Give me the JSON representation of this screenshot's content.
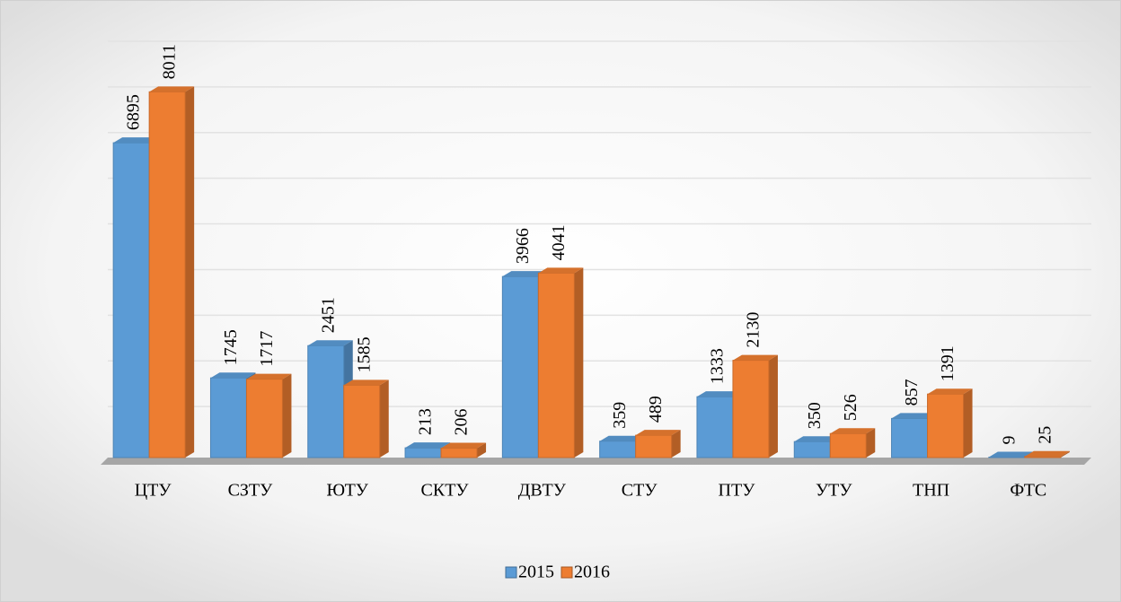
{
  "chart_data": {
    "type": "bar3d",
    "categories": [
      "ЦТУ",
      "СЗТУ",
      "ЮТУ",
      "СКТУ",
      "ДВТУ",
      "СТУ",
      "ПТУ",
      "УТУ",
      "ТНП",
      "ФТС"
    ],
    "series": [
      {
        "name": "2015",
        "color": "#5b9bd5",
        "values": [
          6895,
          1745,
          2451,
          213,
          3966,
          359,
          1333,
          350,
          857,
          9
        ]
      },
      {
        "name": "2016",
        "color": "#ed7d31",
        "values": [
          8011,
          1717,
          1585,
          206,
          4041,
          489,
          2130,
          526,
          1391,
          25
        ]
      }
    ],
    "ylim": [
      0,
      9000
    ],
    "yticks": [
      1000,
      2000,
      3000,
      4000,
      5000,
      6000,
      7000,
      8000,
      9000
    ],
    "grid": true,
    "legend": "bottom"
  }
}
